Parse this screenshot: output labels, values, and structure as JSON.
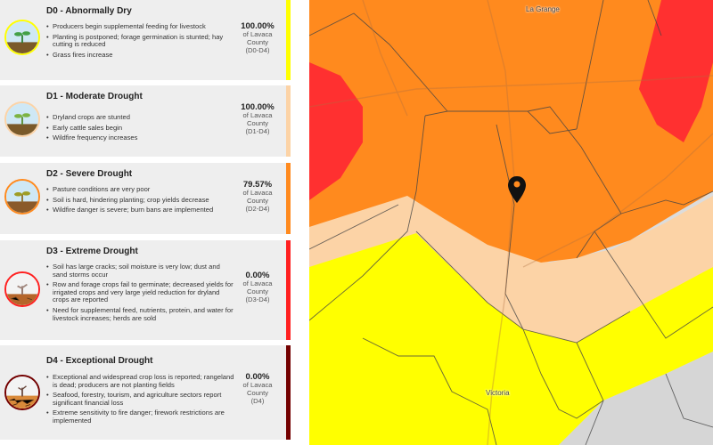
{
  "colors": {
    "d0": "#ffff00",
    "d1": "#fcd3a6",
    "d2": "#ff8a1e",
    "d3": "#ff2020",
    "d4": "#730000",
    "card_bg": "#eeeeee"
  },
  "categories": [
    {
      "code_title": "D0 - Abnormally Dry",
      "icon": "seedling-green-icon",
      "bullets": [
        "Producers begin supplemental feeding for livestock",
        "Planting is postponed; forage germination is stunted; hay cutting is reduced",
        "Grass fires increase"
      ],
      "percent": "100.00%",
      "of_label": "of Lavaca County",
      "range": "(D0-D4)"
    },
    {
      "code_title": "D1 - Moderate Drought",
      "icon": "seedling-pale-icon",
      "bullets": [
        "Dryland crops are stunted",
        "Early cattle sales begin",
        "Wildfire frequency increases"
      ],
      "percent": "100.00%",
      "of_label": "of Lavaca County",
      "range": "(D1-D4)"
    },
    {
      "code_title": "D2 - Severe Drought",
      "icon": "seedling-wilting-icon",
      "bullets": [
        "Pasture conditions are very poor",
        "Soil is hard, hindering planting; crop yields decrease",
        "Wildfire danger is severe; burn bans are implemented"
      ],
      "percent": "79.57%",
      "of_label": "of Lavaca County",
      "range": "(D2-D4)"
    },
    {
      "code_title": "D3 - Extreme Drought",
      "icon": "dry-sprout-icon",
      "bullets": [
        "Soil has large cracks; soil moisture is very low; dust and sand storms occur",
        "Row and forage crops fail to germinate; decreased yields for irrigated crops and very large yield reduction for dryland crops are reported",
        "Need for supplemental feed, nutrients, protein, and water for livestock increases; herds are sold"
      ],
      "percent": "0.00%",
      "of_label": "of Lavaca County",
      "range": "(D3-D4)"
    },
    {
      "code_title": "D4 - Exceptional Drought",
      "icon": "dead-sprout-cracked-soil-icon",
      "bullets": [
        "Exceptional and widespread crop loss is reported; rangeland is dead; producers are not planting fields",
        "Seafood, forestry, tourism, and agriculture sectors report significant financial loss",
        "Extreme sensitivity to fire danger; firework restrictions are implemented"
      ],
      "percent": "0.00%",
      "of_label": "of Lavaca County",
      "range": "(D4)"
    }
  ],
  "map": {
    "city_north": "La Grange",
    "city_south": "Victoria",
    "marker_icon": "map-pin-icon"
  }
}
